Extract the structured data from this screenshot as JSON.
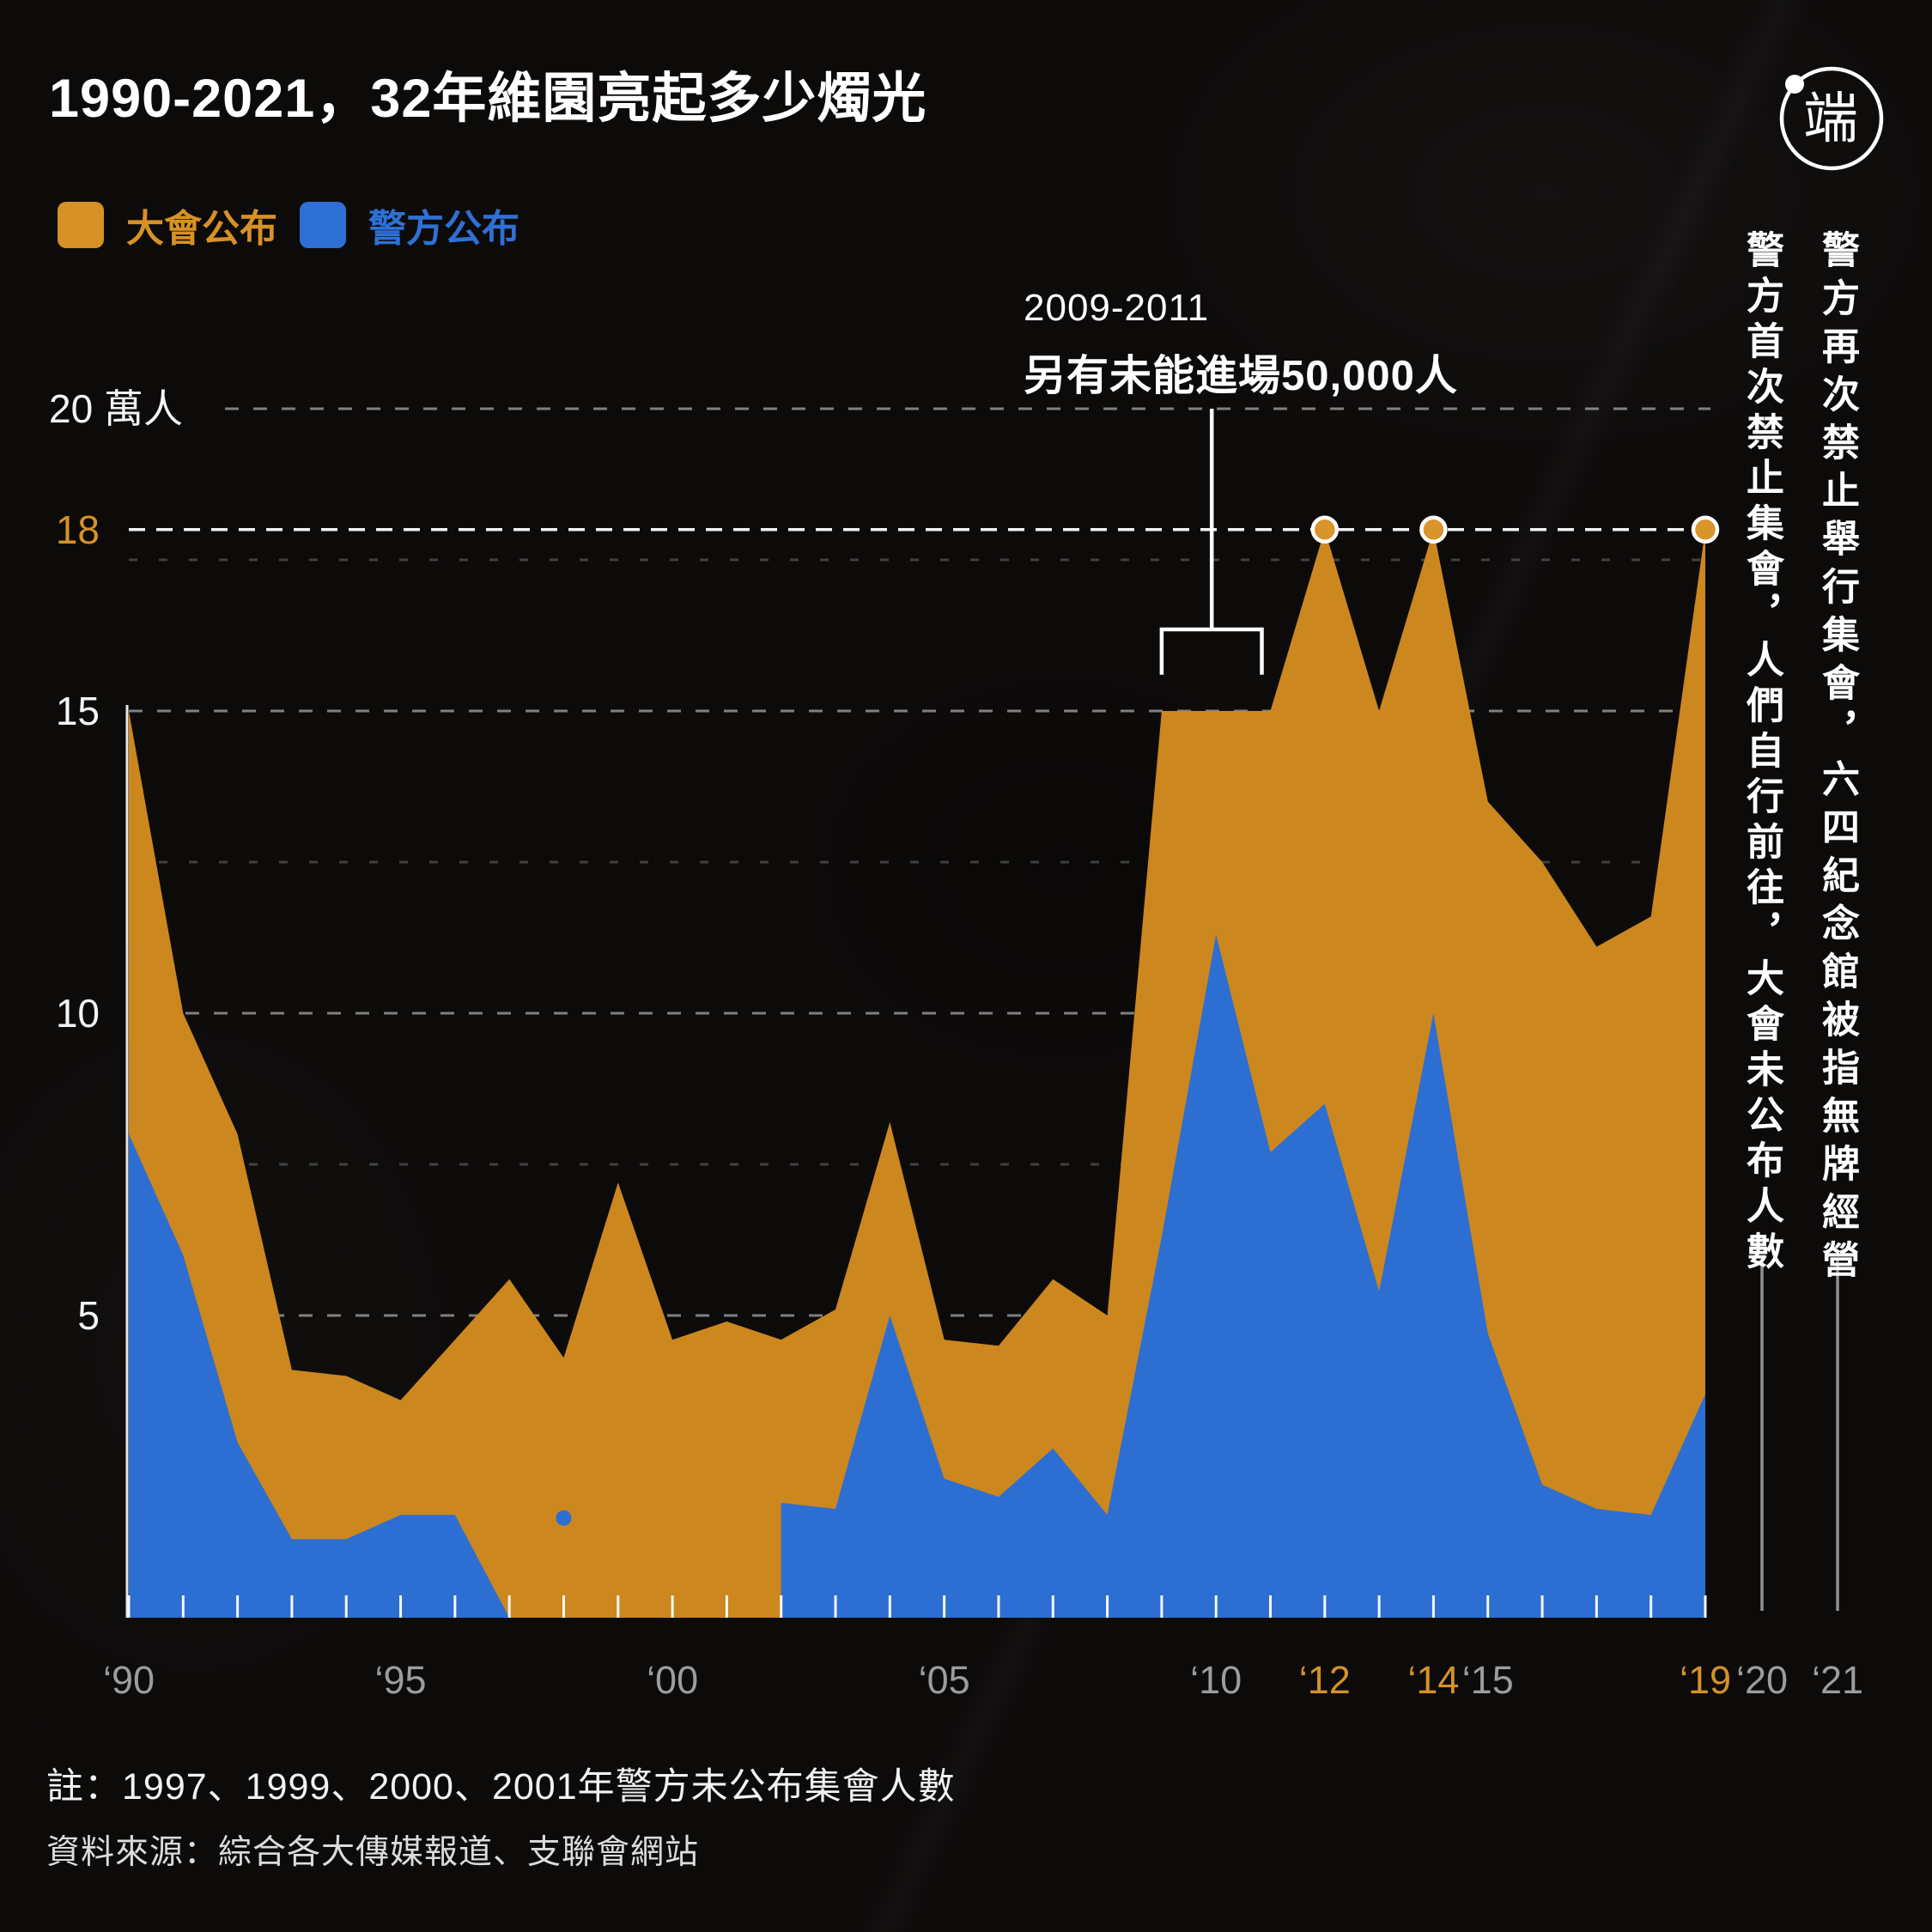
{
  "header": {
    "title": "1990-2021，32年維園亮起多少燭光",
    "logo_char": "端"
  },
  "legend": [
    {
      "label": "大會公布",
      "color": "#d69127"
    },
    {
      "label": "警方公布",
      "color": "#2e70d6"
    }
  ],
  "chart_data": {
    "type": "area",
    "title": "1990-2021，32年維園亮起多少燭光",
    "unit": "萬人",
    "x": [
      1990,
      1991,
      1992,
      1993,
      1994,
      1995,
      1996,
      1997,
      1998,
      1999,
      2000,
      2001,
      2002,
      2003,
      2004,
      2005,
      2006,
      2007,
      2008,
      2009,
      2010,
      2011,
      2012,
      2013,
      2014,
      2015,
      2016,
      2017,
      2018,
      2019
    ],
    "series": [
      {
        "name": "大會公布",
        "color": "#cc871e",
        "values": [
          15,
          10,
          8,
          4.1,
          4,
          3.6,
          4.6,
          5.6,
          4.3,
          7.2,
          4.6,
          4.9,
          4.6,
          5.1,
          8.2,
          4.6,
          4.5,
          5.6,
          5,
          15,
          15,
          15,
          18,
          15,
          18,
          13.5,
          12.5,
          11.1,
          11.6,
          18
        ]
      },
      {
        "name": "警方公布",
        "color": "#2d6ed2",
        "values": [
          8,
          6,
          2.9,
          1.3,
          1.3,
          1.7,
          1.7,
          null,
          1.65,
          null,
          null,
          null,
          1.9,
          1.8,
          5,
          2.3,
          2,
          2.8,
          1.7,
          6.3,
          11.3,
          7.7,
          8.5,
          5.4,
          10,
          4.7,
          2.2,
          1.8,
          1.7,
          3.7
        ]
      }
    ],
    "peak_dots": [
      {
        "year": 2012,
        "value": 18
      },
      {
        "year": 2014,
        "value": 18
      },
      {
        "year": 2019,
        "value": 18
      }
    ],
    "ylim": [
      0,
      21.5
    ],
    "y_gridlines": [
      {
        "value": 20,
        "label": "20 萬人",
        "style": "major",
        "x_start": 262
      },
      {
        "value": 18,
        "label": "18",
        "style": "bright",
        "label_accent": true
      },
      {
        "value": 17.5,
        "label": "",
        "style": "minor"
      },
      {
        "value": 15,
        "label": "15",
        "style": "major"
      },
      {
        "value": 12.5,
        "label": "",
        "style": "minor"
      },
      {
        "value": 10,
        "label": "10",
        "style": "major"
      },
      {
        "value": 7.5,
        "label": "",
        "style": "minor"
      },
      {
        "value": 5,
        "label": "5",
        "style": "major"
      },
      {
        "value": 2.5,
        "label": "",
        "style": "minor"
      }
    ],
    "x_ticks": [
      {
        "year": 1990,
        "label": "‘90",
        "accent": false
      },
      {
        "year": 1995,
        "label": "‘95",
        "accent": false
      },
      {
        "year": 2000,
        "label": "‘00",
        "accent": false
      },
      {
        "year": 2005,
        "label": "‘05",
        "accent": false
      },
      {
        "year": 2010,
        "label": "‘10",
        "accent": false
      },
      {
        "year": 2012,
        "label": "‘12",
        "accent": true
      },
      {
        "year": 2014,
        "label": "‘14",
        "accent": true
      },
      {
        "year": 2015,
        "label": "‘15",
        "accent": false
      },
      {
        "year": 2019,
        "label": "‘19",
        "accent": true
      },
      {
        "year": 2020,
        "label": "‘20",
        "accent": false,
        "x": 2052
      },
      {
        "year": 2021,
        "label": "‘21",
        "accent": false,
        "x": 2140
      }
    ],
    "annotations": {
      "overflow": {
        "line1": "2009-2011",
        "line2": "另有未能進場50,000人",
        "years": [
          2009,
          2011
        ],
        "bracket_top_value": 16.35,
        "bracket_leg_value": 15.6,
        "stem_top_value": 20
      },
      "banned_2020": {
        "text": "警方首次禁止集會，人們自行前往，大會未公布人數",
        "line_x": 2052
      },
      "banned_2021": {
        "text": "警方再次禁止舉行集會，六四紀念館被指無牌經營",
        "line_x": 2140
      }
    },
    "legend_position": "top-left",
    "grid": "dashed"
  },
  "footer": {
    "note": "註：1997、1999、2000、2001年警方未公布集會人數",
    "source": "資料來源：綜合各大傳媒報道、支聯會網站"
  }
}
